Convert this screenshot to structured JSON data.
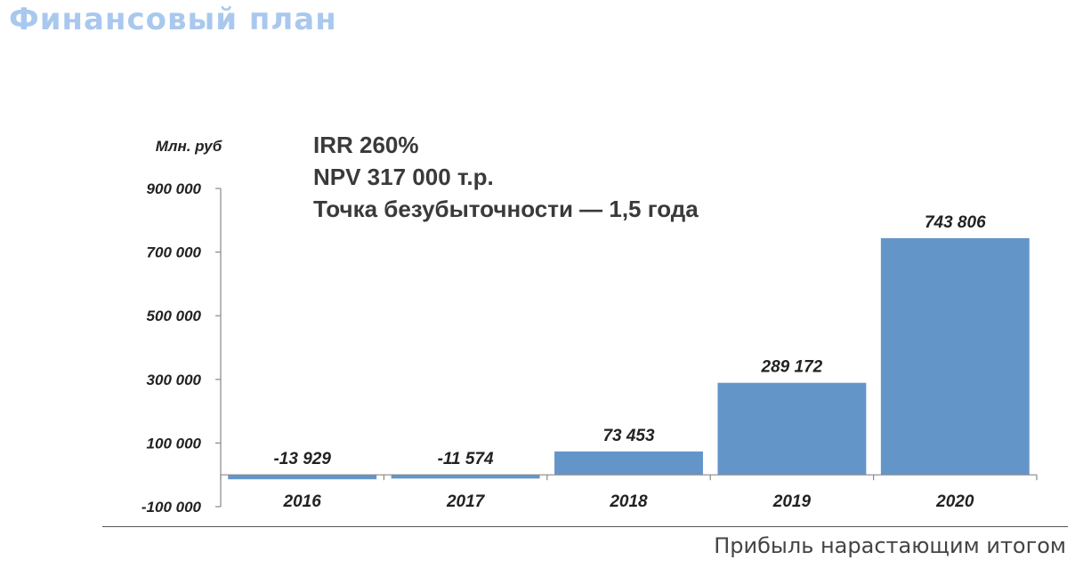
{
  "header": {
    "title": "Финансовый план"
  },
  "metrics": [
    "IRR 260%",
    "NPV 317 000 т.р.",
    "Точка безубыточности — 1,5 года"
  ],
  "footer": {
    "caption": "Прибыль нарастающим итогом"
  },
  "colors": {
    "bar": "#6495c9",
    "title": "#a9c8ee",
    "text": "#222222"
  },
  "chart_data": {
    "type": "bar",
    "ylabel": "Млн. руб",
    "categories": [
      "2016",
      "2017",
      "2018",
      "2019",
      "2020"
    ],
    "values": [
      -13929,
      -11574,
      73453,
      289172,
      743806
    ],
    "value_labels": [
      "-13 929",
      "-11 574",
      "73 453",
      "289 172",
      "743 806"
    ],
    "yticks": [
      -100000,
      100000,
      300000,
      500000,
      700000,
      900000
    ],
    "ytick_labels": [
      "-100 000",
      "100 000",
      "300 000",
      "500 000",
      "700 000",
      "900 000"
    ],
    "ylim": [
      -100000,
      900000
    ],
    "grid": false
  }
}
